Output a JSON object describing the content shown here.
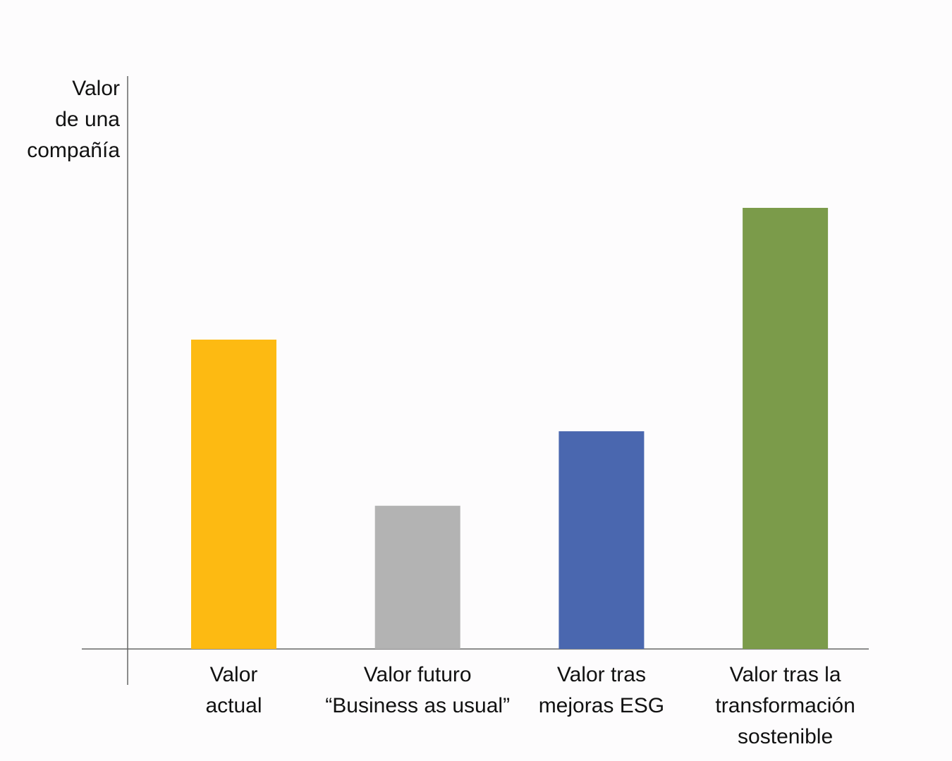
{
  "chart_data": {
    "type": "bar",
    "title": "",
    "ylabel": [
      "Valor",
      "de una",
      "compañía"
    ],
    "xlabel": "",
    "categories": [
      [
        "Valor",
        "actual"
      ],
      [
        "Valor futuro",
        "“Business as usual”"
      ],
      [
        "Valor tras",
        "mejoras ESG"
      ],
      [
        "Valor tras la",
        "transformación",
        "sostenible"
      ]
    ],
    "values": [
      0.54,
      0.25,
      0.38,
      0.77
    ],
    "colors": [
      "#fdba12",
      "#b3b3b3",
      "#4a67af",
      "#7b9b4a"
    ],
    "ylim": [
      0,
      1
    ],
    "y_ticks_shown": false,
    "grid": false,
    "legend": "none"
  }
}
